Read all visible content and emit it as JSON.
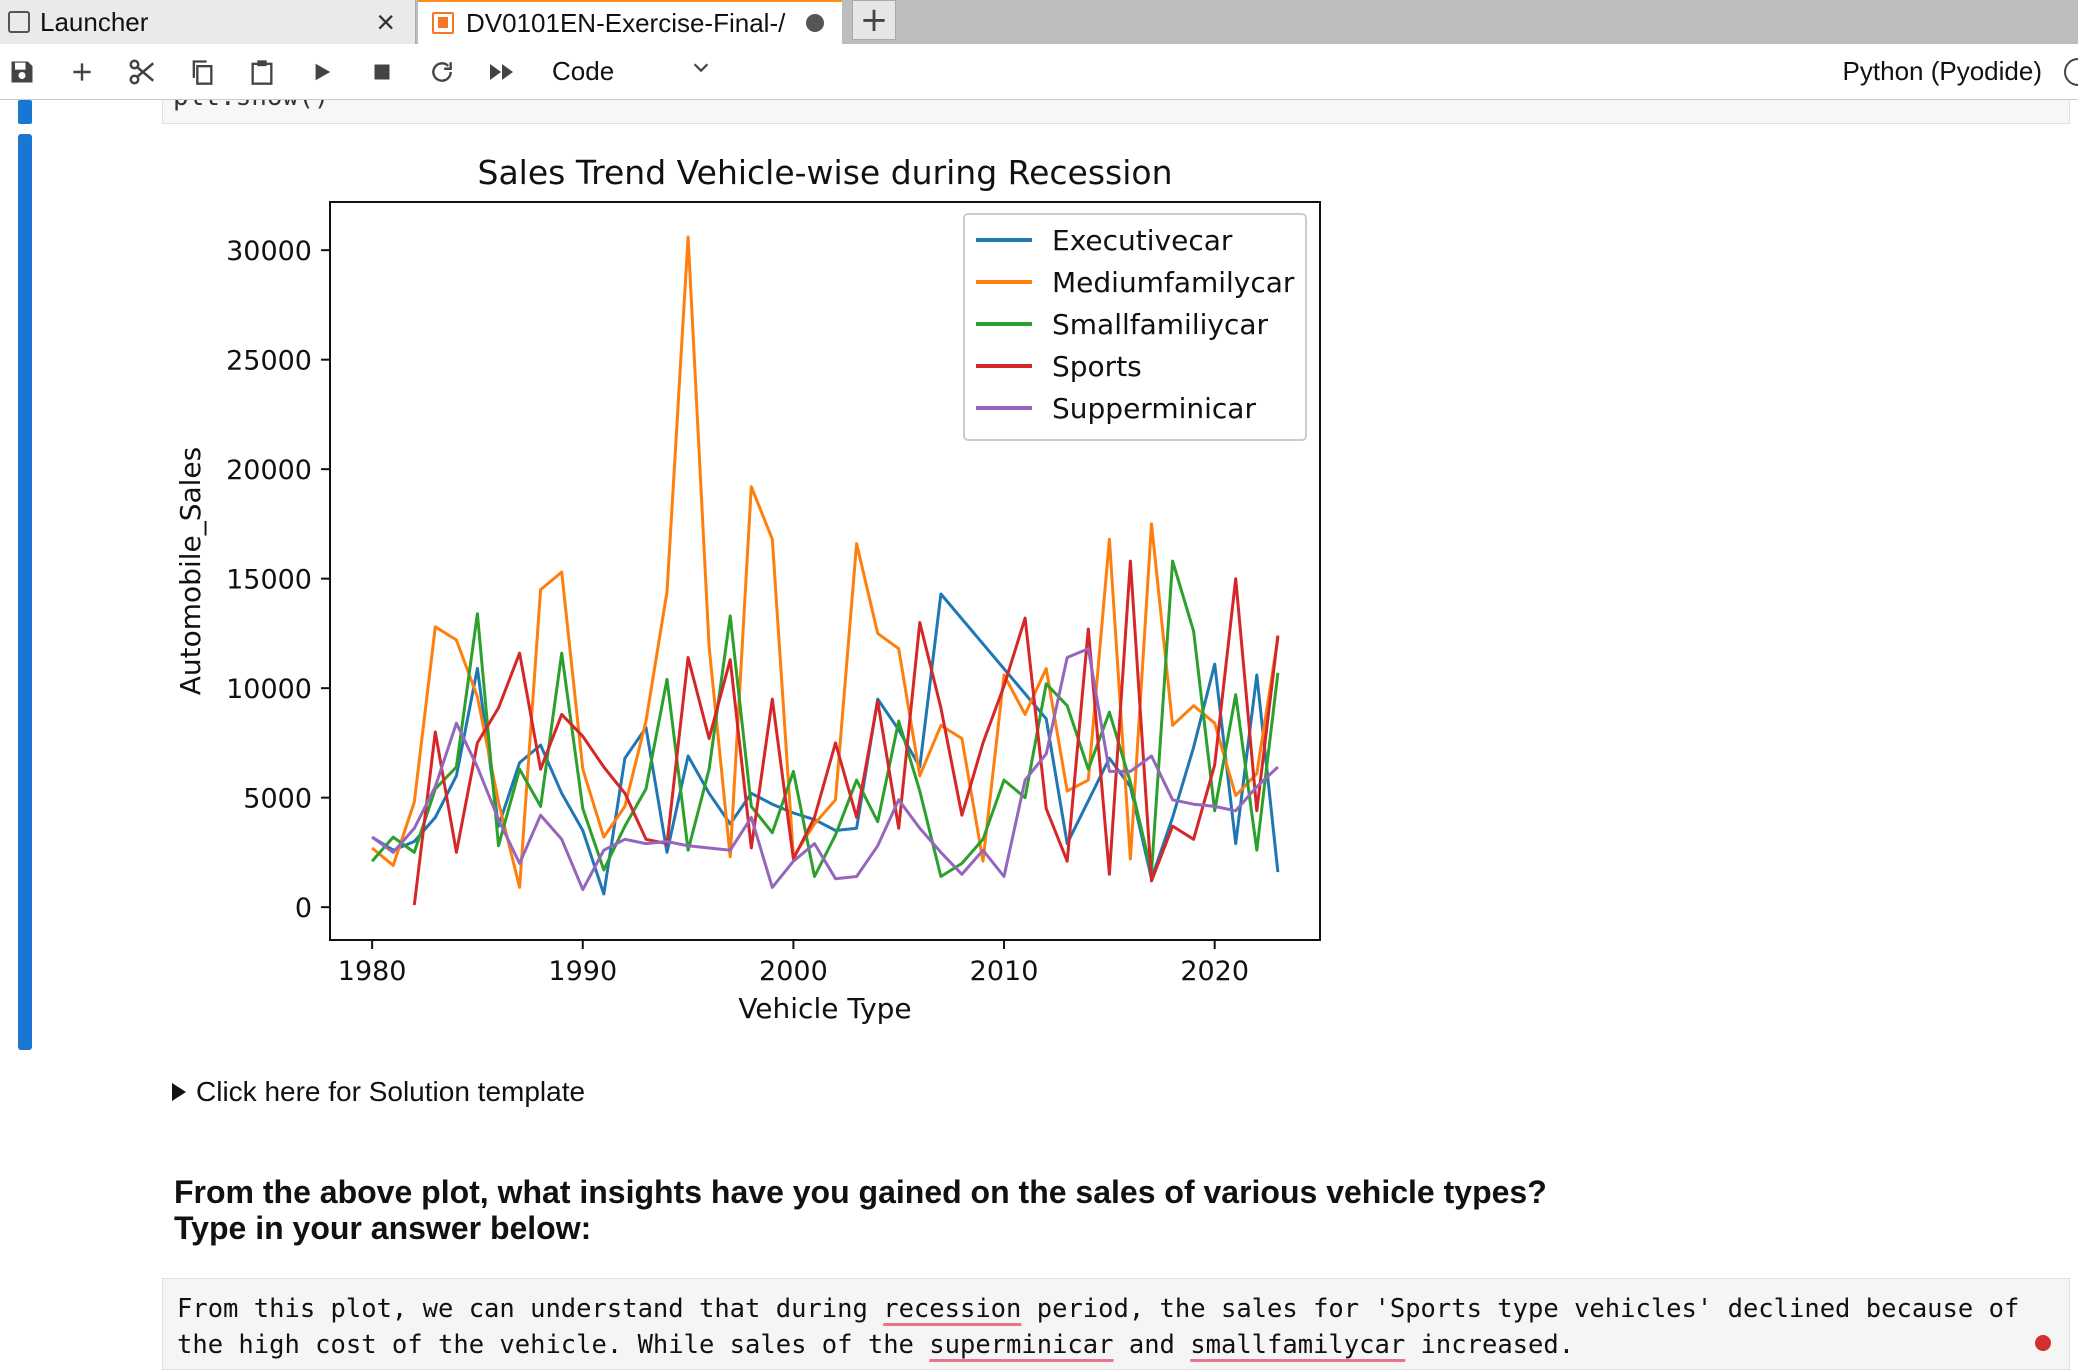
{
  "tabs": [
    {
      "label": "Launcher",
      "active": false
    },
    {
      "label": "DV0101EN-Exercise-Final-/",
      "active": true,
      "unsaved": true
    }
  ],
  "toolbar": {
    "cell_type": "Code",
    "kernel": "Python (Pyodide)",
    "icons": [
      "save-icon",
      "add-icon",
      "cut-icon",
      "copy-icon",
      "paste-icon",
      "run-icon",
      "stop-icon",
      "restart-icon",
      "run-all-icon"
    ]
  },
  "previous_cell_code": "plt.show()",
  "chart_data": {
    "type": "line",
    "title": "Sales Trend Vehicle-wise during Recession",
    "xlabel": "Vehicle Type",
    "ylabel": "Automobile_Sales",
    "xlim": [
      1978,
      2025
    ],
    "ylim": [
      -1500,
      32200
    ],
    "xticks": [
      1980,
      1990,
      2000,
      2010,
      2020
    ],
    "yticks": [
      0,
      5000,
      10000,
      15000,
      20000,
      25000,
      30000
    ],
    "legend_position": "upper right",
    "series": [
      {
        "name": "Executivecar",
        "color": "#1f77b4",
        "points": [
          [
            1980,
            3200
          ],
          [
            1981,
            2600
          ],
          [
            1982,
            3000
          ],
          [
            1983,
            4100
          ],
          [
            1984,
            6000
          ],
          [
            1985,
            10900
          ],
          [
            1986,
            3700
          ],
          [
            1987,
            6600
          ],
          [
            1988,
            7400
          ],
          [
            1989,
            5200
          ],
          [
            1990,
            3500
          ],
          [
            1991,
            600
          ],
          [
            1992,
            6800
          ],
          [
            1993,
            8200
          ],
          [
            1994,
            2500
          ],
          [
            1995,
            6900
          ],
          [
            1996,
            5200
          ],
          [
            1997,
            3800
          ],
          [
            1998,
            5200
          ],
          [
            1999,
            4700
          ],
          [
            2000,
            4300
          ],
          [
            2001,
            4000
          ],
          [
            2002,
            3500
          ],
          [
            2003,
            3600
          ],
          [
            2004,
            9500
          ],
          [
            2005,
            8100
          ],
          [
            2006,
            6400
          ],
          [
            2007,
            14300
          ],
          [
            2012,
            8600
          ],
          [
            2013,
            2900
          ],
          [
            2015,
            6800
          ],
          [
            2016,
            5500
          ],
          [
            2017,
            1300
          ],
          [
            2018,
            4100
          ],
          [
            2019,
            7300
          ],
          [
            2020,
            11100
          ],
          [
            2021,
            2900
          ],
          [
            2022,
            10600
          ],
          [
            2023,
            1600
          ]
        ]
      },
      {
        "name": "Mediumfamilycar",
        "color": "#ff7f0e",
        "points": [
          [
            1980,
            2700
          ],
          [
            1981,
            1900
          ],
          [
            1982,
            4800
          ],
          [
            1983,
            12800
          ],
          [
            1984,
            12200
          ],
          [
            1985,
            9600
          ],
          [
            1986,
            4800
          ],
          [
            1987,
            900
          ],
          [
            1988,
            14500
          ],
          [
            1989,
            15300
          ],
          [
            1990,
            6300
          ],
          [
            1991,
            3200
          ],
          [
            1992,
            4600
          ],
          [
            1993,
            8500
          ],
          [
            1994,
            14400
          ],
          [
            1995,
            30600
          ],
          [
            1996,
            11900
          ],
          [
            1997,
            2300
          ],
          [
            1998,
            19200
          ],
          [
            1999,
            16800
          ],
          [
            2000,
            2300
          ],
          [
            2001,
            3800
          ],
          [
            2002,
            4900
          ],
          [
            2003,
            16600
          ],
          [
            2004,
            12500
          ],
          [
            2005,
            11800
          ],
          [
            2006,
            6000
          ],
          [
            2007,
            8300
          ],
          [
            2008,
            7700
          ],
          [
            2009,
            2100
          ],
          [
            2010,
            10600
          ],
          [
            2011,
            8800
          ],
          [
            2012,
            10900
          ],
          [
            2013,
            5300
          ],
          [
            2014,
            5800
          ],
          [
            2015,
            16800
          ],
          [
            2016,
            2200
          ],
          [
            2017,
            17500
          ],
          [
            2018,
            8300
          ],
          [
            2019,
            9200
          ],
          [
            2020,
            8400
          ],
          [
            2021,
            5100
          ],
          [
            2022,
            6100
          ],
          [
            2023,
            12300
          ]
        ]
      },
      {
        "name": "Smallfamiliycar",
        "color": "#2ca02c",
        "points": [
          [
            1980,
            2100
          ],
          [
            1981,
            3200
          ],
          [
            1982,
            2500
          ],
          [
            1983,
            5400
          ],
          [
            1984,
            6400
          ],
          [
            1985,
            13400
          ],
          [
            1986,
            2800
          ],
          [
            1987,
            6300
          ],
          [
            1988,
            4600
          ],
          [
            1989,
            11600
          ],
          [
            1990,
            4500
          ],
          [
            1991,
            1700
          ],
          [
            1992,
            3700
          ],
          [
            1993,
            5400
          ],
          [
            1994,
            10400
          ],
          [
            1995,
            2600
          ],
          [
            1996,
            6300
          ],
          [
            1997,
            13300
          ],
          [
            1998,
            4600
          ],
          [
            1999,
            3400
          ],
          [
            2000,
            6200
          ],
          [
            2001,
            1400
          ],
          [
            2002,
            3300
          ],
          [
            2003,
            5800
          ],
          [
            2004,
            3900
          ],
          [
            2005,
            8500
          ],
          [
            2006,
            5300
          ],
          [
            2007,
            1400
          ],
          [
            2008,
            2000
          ],
          [
            2009,
            3100
          ],
          [
            2010,
            5800
          ],
          [
            2011,
            5000
          ],
          [
            2012,
            10200
          ],
          [
            2013,
            9200
          ],
          [
            2014,
            6300
          ],
          [
            2015,
            8900
          ],
          [
            2016,
            5700
          ],
          [
            2017,
            1600
          ],
          [
            2018,
            15800
          ],
          [
            2019,
            12600
          ],
          [
            2020,
            4400
          ],
          [
            2021,
            9700
          ],
          [
            2022,
            2600
          ],
          [
            2023,
            10700
          ]
        ]
      },
      {
        "name": "Sports",
        "color": "#d62728",
        "points": [
          [
            1982,
            100
          ],
          [
            1983,
            8000
          ],
          [
            1984,
            2500
          ],
          [
            1985,
            7500
          ],
          [
            1986,
            9100
          ],
          [
            1987,
            11600
          ],
          [
            1988,
            6300
          ],
          [
            1989,
            8800
          ],
          [
            1990,
            7800
          ],
          [
            1991,
            6400
          ],
          [
            1992,
            5200
          ],
          [
            1993,
            3100
          ],
          [
            1994,
            2900
          ],
          [
            1995,
            11400
          ],
          [
            1996,
            7700
          ],
          [
            1997,
            11300
          ],
          [
            1998,
            2700
          ],
          [
            1999,
            9500
          ],
          [
            2000,
            2200
          ],
          [
            2001,
            4100
          ],
          [
            2002,
            7500
          ],
          [
            2003,
            4100
          ],
          [
            2004,
            9400
          ],
          [
            2005,
            3600
          ],
          [
            2006,
            13000
          ],
          [
            2007,
            9100
          ],
          [
            2008,
            4200
          ],
          [
            2009,
            7500
          ],
          [
            2010,
            10100
          ],
          [
            2011,
            13200
          ],
          [
            2012,
            4500
          ],
          [
            2013,
            2100
          ],
          [
            2014,
            12700
          ],
          [
            2015,
            1500
          ],
          [
            2016,
            15800
          ],
          [
            2017,
            1200
          ],
          [
            2018,
            3700
          ],
          [
            2019,
            3100
          ],
          [
            2020,
            6500
          ],
          [
            2021,
            15000
          ],
          [
            2022,
            4400
          ],
          [
            2023,
            12400
          ]
        ]
      },
      {
        "name": "Supperminicar",
        "color": "#9467bd",
        "points": [
          [
            1980,
            3200
          ],
          [
            1981,
            2500
          ],
          [
            1982,
            3600
          ],
          [
            1983,
            5500
          ],
          [
            1984,
            8400
          ],
          [
            1985,
            6400
          ],
          [
            1986,
            4000
          ],
          [
            1987,
            2000
          ],
          [
            1988,
            4200
          ],
          [
            1989,
            3100
          ],
          [
            1990,
            800
          ],
          [
            1991,
            2600
          ],
          [
            1992,
            3100
          ],
          [
            1993,
            2900
          ],
          [
            1994,
            3000
          ],
          [
            1995,
            2800
          ],
          [
            1996,
            2700
          ],
          [
            1997,
            2600
          ],
          [
            1998,
            4100
          ],
          [
            1999,
            900
          ],
          [
            2000,
            2100
          ],
          [
            2001,
            2900
          ],
          [
            2002,
            1300
          ],
          [
            2003,
            1400
          ],
          [
            2004,
            2800
          ],
          [
            2005,
            4900
          ],
          [
            2006,
            3600
          ],
          [
            2007,
            2500
          ],
          [
            2008,
            1500
          ],
          [
            2009,
            2600
          ],
          [
            2010,
            1400
          ],
          [
            2011,
            5800
          ],
          [
            2012,
            7000
          ],
          [
            2013,
            11400
          ],
          [
            2014,
            11800
          ],
          [
            2015,
            6200
          ],
          [
            2016,
            6200
          ],
          [
            2017,
            6900
          ],
          [
            2018,
            4900
          ],
          [
            2019,
            4700
          ],
          [
            2020,
            4600
          ],
          [
            2021,
            4400
          ],
          [
            2022,
            5500
          ],
          [
            2023,
            6400
          ]
        ]
      }
    ]
  },
  "details_summary": "Click here for Solution template",
  "question": {
    "line1": "From the above plot, what insights have you gained on the sales of various vehicle types?",
    "line2": "Type in your answer below:"
  },
  "answer": {
    "p1": "From this plot, we can understand that during ",
    "w1": "recession",
    "p2": " period, the sales for 'Sports type vehicles' declined because of the high cost of the vehicle. While sales of the ",
    "w2": "superminicar",
    "p3": " and ",
    "w3": "smallfamilycar",
    "p4": " increased."
  }
}
